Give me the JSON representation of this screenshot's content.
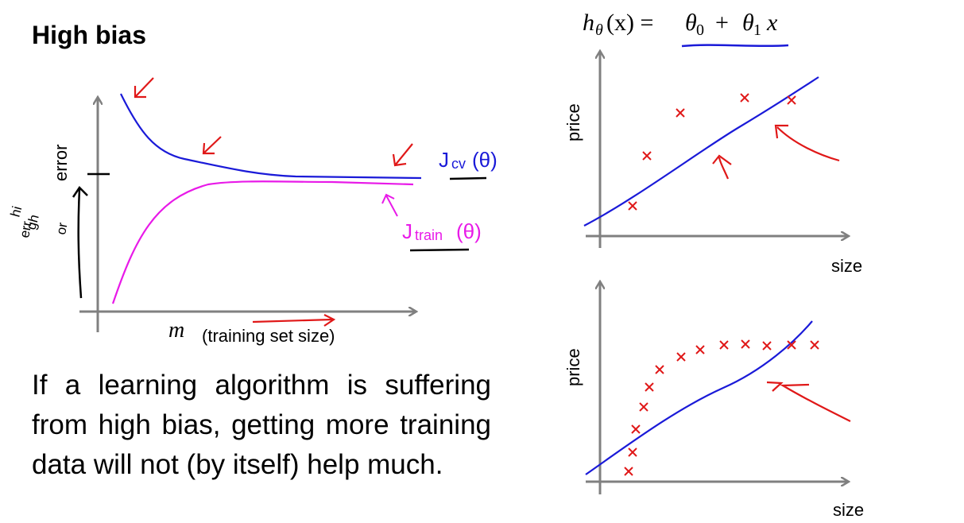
{
  "slide": {
    "title": "High bias",
    "paragraph": "If a learning algorithm is suffering from high bias, getting more training data will not (by itself) help much."
  },
  "learning_curve": {
    "ylabel": "error",
    "xlabel_symbol": "m",
    "xlabel": "(training set size)",
    "cv_label": "J",
    "cv_sub": "cv",
    "cv_arg": "(θ)",
    "train_label": "J",
    "train_sub": "train",
    "train_arg": "(θ)",
    "annotation_lines": [
      "hi",
      "gh",
      "err",
      "or"
    ]
  },
  "hypothesis": {
    "lhs": "h",
    "lhs_sub": "θ",
    "lhs_arg": "(x) =",
    "t0": "θ",
    "t0_sub": "0",
    "plus": "+",
    "t1": "θ",
    "t1_sub": "1",
    "x": "x"
  },
  "top_plot": {
    "ylabel": "price",
    "xlabel": "size"
  },
  "bottom_plot": {
    "ylabel": "price",
    "xlabel": "size"
  },
  "colors": {
    "axis": "#808080",
    "blue": "#1a1ad8",
    "magenta": "#e81ae8",
    "red": "#e01818",
    "black": "#000000"
  }
}
